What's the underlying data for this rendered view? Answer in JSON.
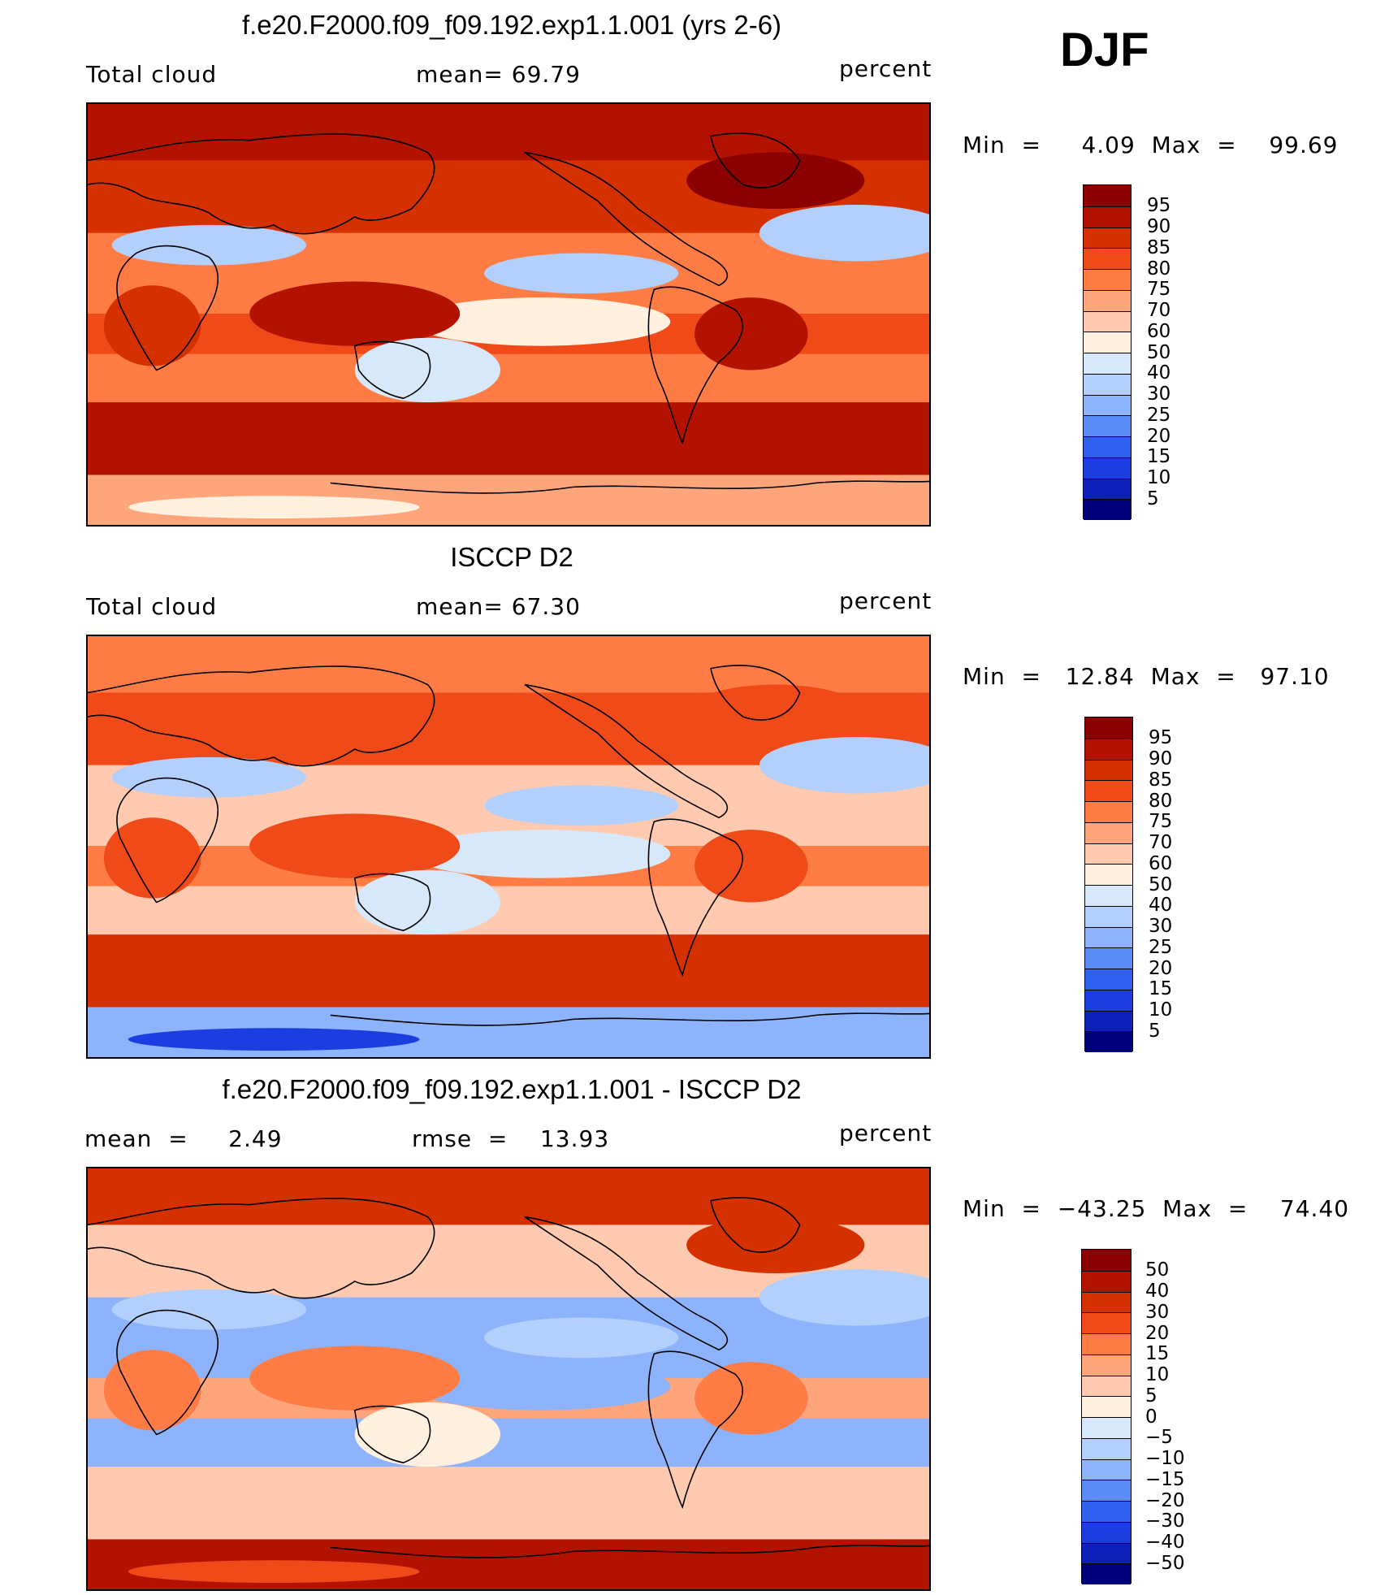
{
  "season": "DJF",
  "panels": [
    {
      "title": "f.e20.F2000.f09_f09.192.exp1.1.001 (yrs 2-6)",
      "left_label": "Total cloud",
      "mid_label": "mean=   69.79",
      "right_label": "percent",
      "minmax": "Min  =     4.09  Max  =    99.69",
      "colorbar": {
        "labels": [
          "95",
          "90",
          "85",
          "80",
          "75",
          "70",
          "60",
          "50",
          "40",
          "30",
          "25",
          "20",
          "15",
          "10",
          "5"
        ],
        "colors": [
          "#8b0000",
          "#b31200",
          "#d43000",
          "#f04a18",
          "#ff7c45",
          "#ffa57c",
          "#ffcaaf",
          "#fff0e0",
          "#d6e8fa",
          "#b3cffc",
          "#8db3fc",
          "#5b8cf5",
          "#3060ee",
          "#1c3ee0",
          "#0d21b8",
          "#00007a"
        ]
      },
      "regions": {
        "upper_lat_band": 92,
        "north_mid": 85,
        "subtropics": 75,
        "tropics": 82,
        "south_midlat": 94,
        "antarctic": 70,
        "deserts": 35
      }
    },
    {
      "title": "ISCCP D2",
      "left_label": "Total cloud",
      "mid_label": "mean=   67.30",
      "right_label": "percent",
      "minmax": "Min  =   12.84  Max  =   97.10",
      "colorbar": {
        "labels": [
          "95",
          "90",
          "85",
          "80",
          "75",
          "70",
          "60",
          "50",
          "40",
          "30",
          "25",
          "20",
          "15",
          "10",
          "5"
        ],
        "colors": [
          "#8b0000",
          "#b31200",
          "#d43000",
          "#f04a18",
          "#ff7c45",
          "#ffa57c",
          "#ffcaaf",
          "#fff0e0",
          "#d6e8fa",
          "#b3cffc",
          "#8db3fc",
          "#5b8cf5",
          "#3060ee",
          "#1c3ee0",
          "#0d21b8",
          "#00007a"
        ]
      },
      "regions": {
        "upper_lat_band": 78,
        "north_mid": 82,
        "subtropics": 65,
        "tropics": 76,
        "south_midlat": 88,
        "antarctic": 25,
        "deserts": 30
      }
    },
    {
      "title": "f.e20.F2000.f09_f09.192.exp1.1.001 - ISCCP D2",
      "left_label": "mean  =     2.49",
      "mid_label": "rmse  =    13.93",
      "right_label": "percent",
      "minmax": "Min  =  −43.25  Max  =    74.40",
      "colorbar": {
        "labels": [
          "50",
          "40",
          "30",
          "20",
          "15",
          "10",
          "5",
          "0",
          "−5",
          "−10",
          "−15",
          "−20",
          "−30",
          "−40",
          "−50"
        ],
        "colors": [
          "#8b0000",
          "#b31200",
          "#d43000",
          "#f04a18",
          "#ff7c45",
          "#ffa57c",
          "#ffcaaf",
          "#fff0e0",
          "#d6e8fa",
          "#b3cffc",
          "#8db3fc",
          "#5b8cf5",
          "#3060ee",
          "#1c3ee0",
          "#0d21b8",
          "#00007a"
        ]
      },
      "regions": {
        "upper_lat_band": 30,
        "north_mid": 5,
        "subtropics": -15,
        "tropics": 10,
        "south_midlat": 5,
        "antarctic": 40,
        "deserts": -10
      }
    }
  ]
}
